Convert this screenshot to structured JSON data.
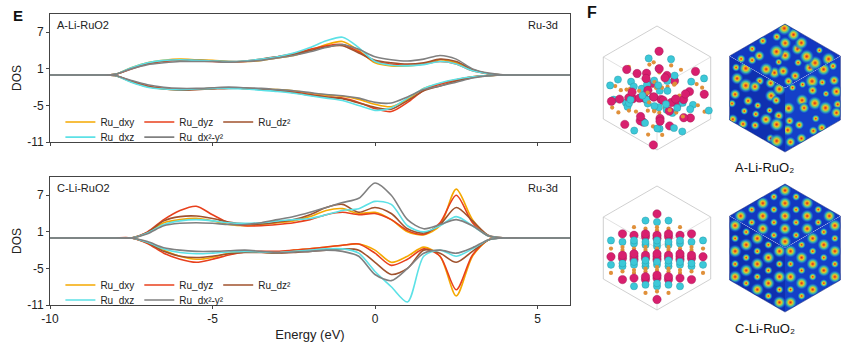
{
  "chart_data": [
    {
      "type": "line",
      "title": "A-Li-RuO2",
      "annotation": "Ru-3d",
      "panel_label": "E",
      "y_label": "DOS",
      "tick_labels": "y",
      "legend": "lower left",
      "xlim": [
        -10,
        6
      ],
      "ylim": [
        -11,
        10
      ],
      "xticks": [
        -10,
        -5,
        0,
        5
      ],
      "yticks": [
        -11,
        -5,
        1,
        7
      ],
      "x": [
        -10,
        -9.5,
        -9,
        -8.5,
        -8,
        -7.5,
        -7,
        -6.5,
        -6,
        -5.5,
        -5,
        -4.5,
        -4,
        -3.5,
        -3,
        -2.5,
        -2,
        -1.5,
        -1,
        -0.5,
        0,
        0.5,
        1,
        1.5,
        2,
        2.5,
        3,
        3.5,
        4,
        4.5,
        5,
        5.5,
        6
      ],
      "series": [
        {
          "name": "Ru_dxy",
          "color": "#f5a800",
          "spin_up": [
            0,
            0,
            0,
            0,
            0.1,
            1.2,
            2.0,
            2.4,
            2.6,
            2.5,
            2.4,
            2.2,
            2.2,
            2.4,
            2.8,
            3.2,
            4.0,
            5.0,
            5.5,
            4.0,
            2.0,
            1.5,
            1.5,
            1.8,
            2.5,
            2.0,
            0.8,
            0.2,
            0,
            0,
            0,
            0,
            0
          ],
          "spin_down": [
            0,
            0,
            0,
            0,
            -0.1,
            -1.1,
            -1.9,
            -2.3,
            -2.4,
            -2.3,
            -2.2,
            -2.1,
            -2.2,
            -2.3,
            -2.4,
            -2.6,
            -3.0,
            -3.3,
            -3.5,
            -4.0,
            -4.8,
            -5.2,
            -4.0,
            -2.2,
            -1.4,
            -0.8,
            -0.3,
            -0.1,
            0,
            0,
            0,
            0,
            0
          ]
        },
        {
          "name": "Ru_dyz",
          "color": "#e8401c",
          "spin_up": [
            0,
            0,
            0,
            0,
            0.1,
            1.0,
            1.8,
            2.2,
            2.4,
            2.3,
            2.2,
            2.1,
            2.2,
            2.5,
            3.0,
            3.5,
            4.2,
            4.8,
            5.0,
            3.8,
            2.2,
            1.8,
            1.6,
            1.8,
            2.2,
            1.8,
            0.7,
            0.2,
            0,
            0,
            0,
            0,
            0
          ],
          "spin_down": [
            0,
            0,
            0,
            0,
            -0.1,
            -1.0,
            -1.8,
            -2.2,
            -2.4,
            -2.3,
            -2.2,
            -2.1,
            -2.2,
            -2.3,
            -2.5,
            -2.8,
            -3.2,
            -3.6,
            -3.8,
            -4.5,
            -5.5,
            -6.0,
            -4.5,
            -2.5,
            -1.5,
            -0.8,
            -0.3,
            -0.1,
            0,
            0,
            0,
            0,
            0
          ]
        },
        {
          "name": "Ru_dz²",
          "color": "#a0522d",
          "spin_up": [
            0,
            0,
            0,
            0,
            0.1,
            1.1,
            1.9,
            2.3,
            2.5,
            2.4,
            2.3,
            2.2,
            2.3,
            2.6,
            3.0,
            3.4,
            4.0,
            4.6,
            4.8,
            3.6,
            2.4,
            2.0,
            1.8,
            2.0,
            2.6,
            2.2,
            0.9,
            0.2,
            0,
            0,
            0,
            0,
            0
          ],
          "spin_down": [
            0,
            0,
            0,
            0,
            -0.1,
            -1.1,
            -1.9,
            -2.3,
            -2.5,
            -2.4,
            -2.3,
            -2.2,
            -2.2,
            -2.4,
            -2.6,
            -2.9,
            -3.3,
            -3.6,
            -3.9,
            -4.6,
            -5.3,
            -5.6,
            -4.2,
            -2.6,
            -1.8,
            -1.0,
            -0.4,
            -0.1,
            0,
            0,
            0,
            0,
            0
          ]
        },
        {
          "name": "Ru_dxz",
          "color": "#5ce1e6",
          "spin_up": [
            0,
            0,
            0,
            0,
            0.1,
            1.2,
            2.0,
            2.4,
            2.5,
            2.4,
            2.3,
            2.2,
            2.3,
            2.6,
            3.0,
            3.6,
            4.5,
            5.6,
            6.2,
            4.5,
            2.2,
            1.6,
            1.5,
            1.7,
            2.2,
            1.8,
            0.7,
            0.2,
            0,
            0,
            0,
            0,
            0
          ],
          "spin_down": [
            0,
            0,
            0,
            0,
            -0.1,
            -1.2,
            -2.0,
            -2.3,
            -2.4,
            -2.3,
            -2.2,
            -2.2,
            -2.3,
            -2.5,
            -2.7,
            -3.0,
            -3.4,
            -3.8,
            -4.2,
            -5.0,
            -5.8,
            -5.4,
            -3.8,
            -2.2,
            -1.3,
            -0.7,
            -0.3,
            -0.1,
            0,
            0,
            0,
            0,
            0
          ]
        },
        {
          "name": "Ru_dx²-y²",
          "color": "#808080",
          "spin_up": [
            0,
            0,
            0,
            0,
            0.1,
            1.0,
            1.7,
            2.0,
            2.2,
            2.2,
            2.2,
            2.1,
            2.2,
            2.4,
            2.8,
            3.2,
            3.8,
            4.5,
            5.0,
            4.2,
            3.0,
            2.5,
            2.3,
            2.6,
            3.2,
            2.6,
            1.0,
            0.3,
            0,
            0,
            0,
            0,
            0
          ],
          "spin_down": [
            0,
            0,
            0,
            0,
            -0.1,
            -0.9,
            -1.6,
            -2.0,
            -2.2,
            -2.2,
            -2.1,
            -2.0,
            -2.1,
            -2.2,
            -2.4,
            -2.6,
            -2.9,
            -3.2,
            -3.4,
            -3.8,
            -4.5,
            -4.6,
            -3.6,
            -2.4,
            -1.8,
            -1.2,
            -0.5,
            -0.1,
            0,
            0,
            0,
            0,
            0
          ]
        }
      ]
    },
    {
      "type": "line",
      "title": "C-Li-RuO2",
      "annotation": "Ru-3d",
      "x_label": "Energy (eV)",
      "y_label": "DOS",
      "tick_labels": true,
      "legend": "lower left",
      "xlim": [
        -10,
        6
      ],
      "ylim": [
        -11,
        10
      ],
      "xticks": [
        -10,
        -5,
        0,
        5
      ],
      "yticks": [
        -11,
        -5,
        1,
        7
      ],
      "x": [
        -10,
        -9.5,
        -9,
        -8.5,
        -8,
        -7.5,
        -7,
        -6.5,
        -6,
        -5.5,
        -5,
        -4.5,
        -4,
        -3.5,
        -3,
        -2.5,
        -2,
        -1.5,
        -1,
        -0.5,
        0,
        0.5,
        1,
        1.5,
        2,
        2.5,
        3,
        3.5,
        4,
        4.5,
        5,
        5.5,
        6
      ],
      "series": [
        {
          "name": "Ru_dxy",
          "color": "#f5a800",
          "spin_up": [
            0,
            0,
            0,
            0,
            0,
            0,
            0.8,
            2.5,
            3.0,
            3.2,
            2.8,
            2.2,
            2.0,
            2.2,
            2.5,
            2.8,
            3.5,
            4.5,
            4.8,
            4.0,
            4.2,
            3.0,
            1.0,
            0.5,
            2.0,
            8.0,
            3.0,
            0.3,
            0,
            0,
            0,
            0,
            0
          ],
          "spin_down": [
            0,
            0,
            0,
            0,
            0,
            0,
            -0.8,
            -2.0,
            -3.0,
            -3.5,
            -3.2,
            -2.5,
            -2.2,
            -2.3,
            -2.5,
            -2.0,
            -1.8,
            -1.5,
            -1.2,
            -1.0,
            -2.0,
            -4.0,
            -3.0,
            -1.5,
            -3.0,
            -9.5,
            -3.0,
            -0.3,
            0,
            0,
            0,
            0,
            0
          ]
        },
        {
          "name": "Ru_dyz",
          "color": "#e8401c",
          "spin_up": [
            0,
            0,
            0,
            0,
            0,
            0,
            1.0,
            3.0,
            4.5,
            5.2,
            3.8,
            2.5,
            2.0,
            2.0,
            2.2,
            2.5,
            3.0,
            3.8,
            4.2,
            3.8,
            4.0,
            3.0,
            1.2,
            0.6,
            2.5,
            7.0,
            2.5,
            0.3,
            0,
            0,
            0,
            0,
            0
          ],
          "spin_down": [
            0,
            0,
            0,
            0,
            0,
            0,
            -0.9,
            -2.5,
            -3.5,
            -4.0,
            -3.5,
            -2.8,
            -2.3,
            -2.2,
            -2.2,
            -2.0,
            -1.8,
            -1.5,
            -1.2,
            -1.0,
            -2.5,
            -4.5,
            -3.5,
            -1.8,
            -3.0,
            -8.5,
            -2.8,
            -0.3,
            0,
            0,
            0,
            0,
            0
          ]
        },
        {
          "name": "Ru_dz²",
          "color": "#a0522d",
          "spin_up": [
            0,
            0,
            0,
            0,
            0,
            0,
            0.9,
            2.8,
            3.5,
            3.6,
            3.2,
            2.6,
            2.3,
            2.3,
            2.6,
            3.0,
            3.8,
            5.0,
            5.5,
            4.2,
            5.0,
            4.0,
            1.5,
            0.8,
            2.2,
            5.0,
            2.8,
            0.4,
            0,
            0,
            0,
            0,
            0
          ],
          "spin_down": [
            0,
            0,
            0,
            0,
            0,
            0,
            -0.8,
            -2.2,
            -3.0,
            -3.2,
            -3.0,
            -2.6,
            -2.4,
            -2.4,
            -2.5,
            -2.4,
            -2.2,
            -2.0,
            -1.8,
            -2.0,
            -4.0,
            -6.0,
            -5.0,
            -2.0,
            -2.5,
            -4.0,
            -2.2,
            -0.3,
            0,
            0,
            0,
            0,
            0
          ]
        },
        {
          "name": "Ru_dxz",
          "color": "#5ce1e6",
          "spin_up": [
            0,
            0,
            0,
            0,
            0,
            0,
            0.8,
            2.2,
            2.8,
            3.0,
            2.8,
            2.5,
            2.4,
            2.5,
            2.8,
            3.0,
            3.2,
            3.8,
            4.5,
            4.8,
            6.0,
            5.5,
            2.0,
            1.0,
            2.0,
            3.5,
            2.0,
            0.3,
            0,
            0,
            0,
            0,
            0
          ],
          "spin_down": [
            0,
            0,
            0,
            0,
            0,
            0,
            -0.7,
            -1.8,
            -2.4,
            -2.6,
            -2.5,
            -2.3,
            -2.2,
            -2.3,
            -2.4,
            -2.2,
            -2.0,
            -1.8,
            -1.8,
            -2.5,
            -5.5,
            -8.0,
            -10.5,
            -3.0,
            -2.0,
            -3.0,
            -1.8,
            -0.3,
            0,
            0,
            0,
            0,
            0
          ]
        },
        {
          "name": "Ru_dx²-y²",
          "color": "#808080",
          "spin_up": [
            0,
            0,
            0,
            0,
            0,
            0,
            0.7,
            2.0,
            2.4,
            2.5,
            2.4,
            2.2,
            2.2,
            2.5,
            3.0,
            3.5,
            4.2,
            5.0,
            5.8,
            6.5,
            9.0,
            7.0,
            3.0,
            1.5,
            2.2,
            3.0,
            2.0,
            0.3,
            0,
            0,
            0,
            0,
            0
          ],
          "spin_down": [
            0,
            0,
            0,
            0,
            0,
            0,
            -0.6,
            -1.6,
            -2.0,
            -2.2,
            -2.2,
            -2.1,
            -2.0,
            -2.2,
            -2.4,
            -2.3,
            -2.2,
            -2.0,
            -2.2,
            -3.0,
            -6.0,
            -7.0,
            -5.0,
            -2.5,
            -2.0,
            -2.5,
            -1.6,
            -0.3,
            0,
            0,
            0,
            0,
            0
          ]
        }
      ]
    }
  ],
  "figure": {
    "panel_label": "F",
    "structure_labels": [
      "A-Li-RuO₂",
      "C-Li-RuO₂"
    ]
  }
}
